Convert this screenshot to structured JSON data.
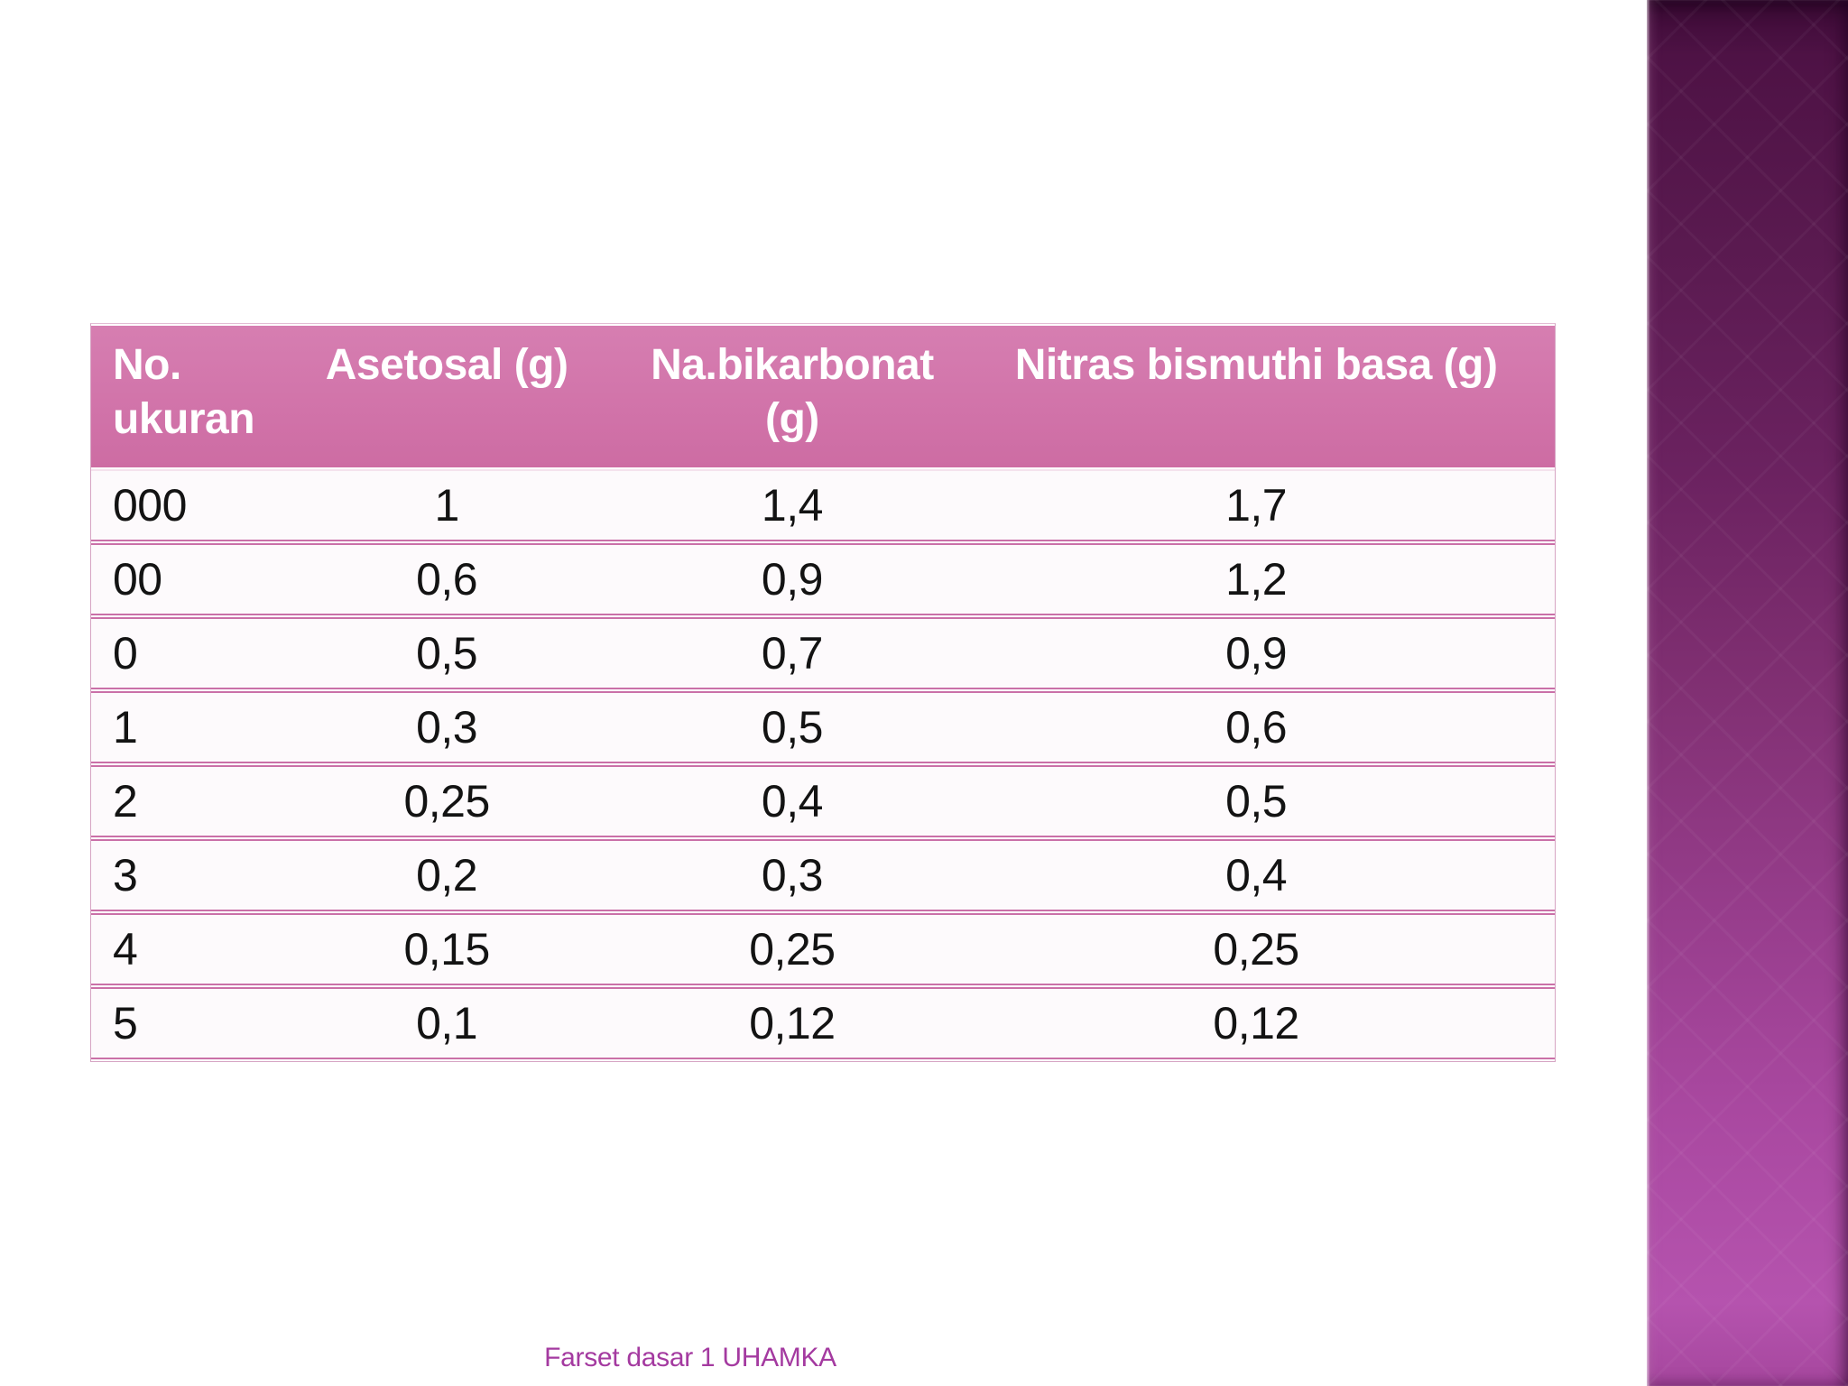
{
  "slide": {
    "background_color": "#ffffff",
    "accent_bar": {
      "name": "right-gradient-bar",
      "gradient_top_color": "#3b0a35",
      "gradient_bottom_color": "#b553ae"
    },
    "footer": {
      "text": "Farset dasar 1 UHAMKA",
      "color": "#a43aa0"
    }
  },
  "table": {
    "header_bg_color": "#d173a9",
    "header_text_color": "#ffffff",
    "row_bg_color": "#fdfafc",
    "row_border_color": "#ca70a8",
    "body_text_color": "#131313",
    "columns": [
      "No. ukuran",
      "Asetosal (g)",
      "Na.bikarbonat (g)",
      "Nitras bismuthi basa (g)"
    ],
    "rows": [
      [
        "000",
        "1",
        "1,4",
        "1,7"
      ],
      [
        "00",
        "0,6",
        "0,9",
        "1,2"
      ],
      [
        "0",
        "0,5",
        "0,7",
        "0,9"
      ],
      [
        "1",
        "0,3",
        "0,5",
        "0,6"
      ],
      [
        "2",
        "0,25",
        "0,4",
        "0,5"
      ],
      [
        "3",
        "0,2",
        "0,3",
        "0,4"
      ],
      [
        "4",
        "0,15",
        "0,25",
        "0,25"
      ],
      [
        "5",
        "0,1",
        "0,12",
        "0,12"
      ]
    ]
  }
}
